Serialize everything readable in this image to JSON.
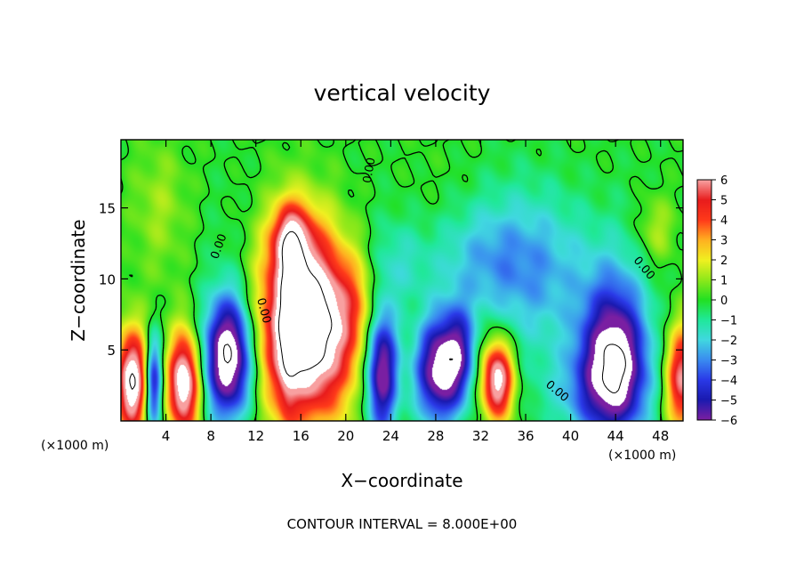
{
  "chart_data": {
    "type": "heatmap",
    "title": "vertical velocity",
    "xlabel": "X−coordinate",
    "ylabel": "Z−coordinate",
    "x_unit_left": "(×1000 m)",
    "x_unit_right": "(×1000 m)",
    "footer": "CONTOUR INTERVAL = 8.000E+00",
    "xlim": [
      0,
      50
    ],
    "ylim": [
      0,
      19.8
    ],
    "x_ticks": [
      4,
      8,
      12,
      16,
      20,
      24,
      28,
      32,
      36,
      40,
      44,
      48
    ],
    "y_ticks": [
      5,
      10,
      15
    ],
    "colorbar": {
      "ticks": [
        "6",
        "5",
        "4",
        "3",
        "2",
        "1",
        "0",
        "−1",
        "−2",
        "−3",
        "−4",
        "−5",
        "−6"
      ],
      "range": [
        -6,
        6
      ],
      "stops": [
        {
          "v": -6,
          "color": "#7a1fa2"
        },
        {
          "v": -5,
          "color": "#1a1ab0"
        },
        {
          "v": -4,
          "color": "#2a3ae8"
        },
        {
          "v": -3,
          "color": "#3a8cf0"
        },
        {
          "v": -2,
          "color": "#40d8e0"
        },
        {
          "v": -1,
          "color": "#20e89a"
        },
        {
          "v": 0,
          "color": "#22e022"
        },
        {
          "v": 1,
          "color": "#8ee81a"
        },
        {
          "v": 2,
          "color": "#f0f020"
        },
        {
          "v": 3,
          "color": "#ffb020"
        },
        {
          "v": 4,
          "color": "#ff3a1a"
        },
        {
          "v": 5,
          "color": "#e81c1c"
        },
        {
          "v": 6,
          "color": "#f8a0a0"
        }
      ]
    },
    "contour_labels": [
      {
        "text": "0.00",
        "x": 9.0,
        "z": 12.2,
        "angle": -70
      },
      {
        "text": "0.00",
        "x": 12.4,
        "z": 7.7,
        "angle": 75
      },
      {
        "text": "0.00",
        "x": 22.4,
        "z": 17.6,
        "angle": -80
      },
      {
        "text": "0.00",
        "x": 38.6,
        "z": 1.9,
        "angle": 40
      },
      {
        "text": "0.00",
        "x": 46.3,
        "z": 10.6,
        "angle": 50
      }
    ],
    "features": [
      {
        "x": 1.0,
        "z": 2.7,
        "sx": 1.0,
        "sz": 2.6,
        "amp": 8.0
      },
      {
        "x": 2.9,
        "z": 2.6,
        "sx": 0.55,
        "sz": 2.4,
        "amp": -5.5
      },
      {
        "x": 5.6,
        "z": 2.6,
        "sx": 1.0,
        "sz": 2.5,
        "amp": 8.0
      },
      {
        "x": 9.6,
        "z": 4.5,
        "sx": 1.5,
        "sz": 3.0,
        "amp": -8.5
      },
      {
        "x": 16.6,
        "z": 6.6,
        "sx": 2.9,
        "sz": 4.4,
        "amp": 10.0
      },
      {
        "x": 15.2,
        "z": 12.8,
        "sx": 1.3,
        "sz": 1.8,
        "amp": 4.5
      },
      {
        "x": 23.2,
        "z": 3.6,
        "sx": 1.0,
        "sz": 3.2,
        "amp": -7.0
      },
      {
        "x": 28.3,
        "z": 3.6,
        "sx": 1.5,
        "sz": 2.6,
        "amp": -7.0
      },
      {
        "x": 30.1,
        "z": 5.0,
        "sx": 1.0,
        "sz": 2.3,
        "amp": -3.5
      },
      {
        "x": 33.5,
        "z": 2.9,
        "sx": 1.0,
        "sz": 2.0,
        "amp": 7.5
      },
      {
        "x": 43.9,
        "z": 4.6,
        "sx": 2.1,
        "sz": 3.8,
        "amp": -9.0
      },
      {
        "x": 49.9,
        "z": 3.0,
        "sx": 1.0,
        "sz": 2.6,
        "amp": 6.0
      },
      {
        "x": 37.6,
        "z": 10.5,
        "sx": 4.2,
        "sz": 4.0,
        "amp": -2.6
      },
      {
        "x": 31.0,
        "z": 11.5,
        "sx": 3.2,
        "sz": 2.6,
        "amp": -1.6
      },
      {
        "x": 24.5,
        "z": 11.0,
        "sx": 2.0,
        "sz": 2.2,
        "amp": -1.4
      },
      {
        "x": 21.2,
        "z": 8.5,
        "sx": 1.6,
        "sz": 2.5,
        "amp": 1.5
      },
      {
        "x": 41.0,
        "z": 2.0,
        "sx": 3.0,
        "sz": 2.2,
        "amp": -1.6
      },
      {
        "x": 47.6,
        "z": 13.4,
        "sx": 1.2,
        "sz": 1.8,
        "amp": 1.7
      },
      {
        "x": 3.5,
        "z": 15.5,
        "sx": 1.8,
        "sz": 3.0,
        "amp": 0.9
      },
      {
        "x": 44.0,
        "z": 7.0,
        "sx": 2.5,
        "sz": 3.0,
        "amp": 1.6
      },
      {
        "x": 14.8,
        "z": 6.0,
        "sx": 0.6,
        "sz": 5.5,
        "amp": 2.0
      }
    ]
  }
}
